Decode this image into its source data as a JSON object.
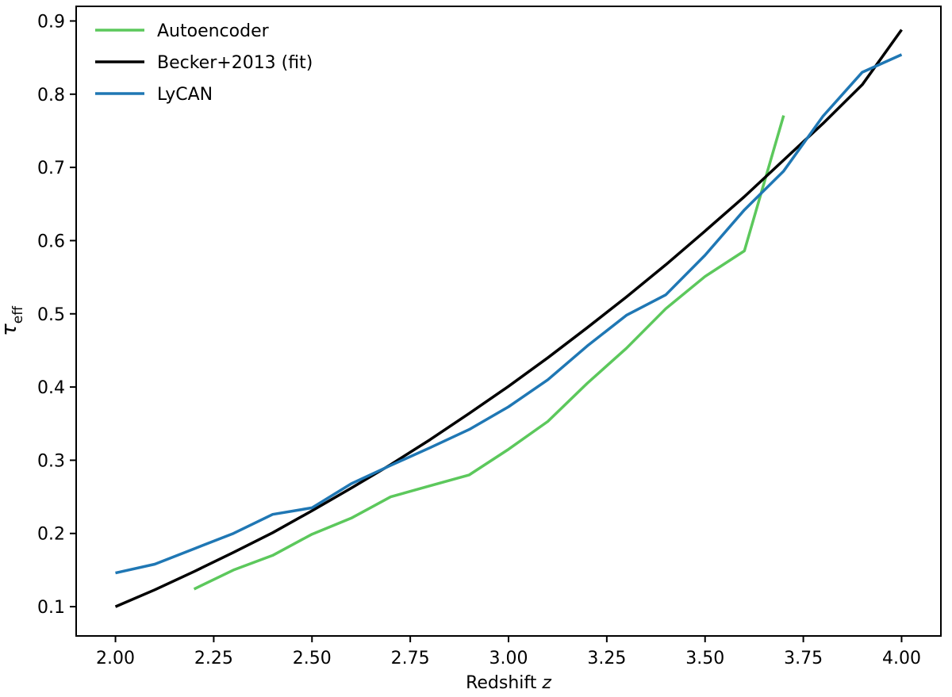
{
  "chart_data": {
    "type": "line",
    "title": "",
    "xlabel": "Redshift",
    "xlabel_var": "z",
    "ylabel": "τ",
    "ylabel_sub": "eff",
    "xlim": [
      1.9,
      4.1
    ],
    "ylim": [
      0.06,
      0.92
    ],
    "xticks": [
      2.0,
      2.25,
      2.5,
      2.75,
      3.0,
      3.25,
      3.5,
      3.75,
      4.0
    ],
    "xtick_labels": [
      "2.00",
      "2.25",
      "2.50",
      "2.75",
      "3.00",
      "3.25",
      "3.50",
      "3.75",
      "4.00"
    ],
    "yticks": [
      0.1,
      0.2,
      0.3,
      0.4,
      0.5,
      0.6,
      0.7,
      0.8,
      0.9
    ],
    "ytick_labels": [
      "0.1",
      "0.2",
      "0.3",
      "0.4",
      "0.5",
      "0.6",
      "0.7",
      "0.8",
      "0.9"
    ],
    "grid": false,
    "legend_position": "top-left",
    "series": [
      {
        "name": "Autoencoder",
        "color": "#5cc85c",
        "x": [
          2.2,
          2.3,
          2.4,
          2.5,
          2.6,
          2.7,
          2.8,
          2.9,
          3.0,
          3.1,
          3.2,
          3.3,
          3.4,
          3.5,
          3.6,
          3.7
        ],
        "y": [
          0.124,
          0.15,
          0.17,
          0.199,
          0.221,
          0.25,
          0.265,
          0.28,
          0.315,
          0.353,
          0.405,
          0.453,
          0.507,
          0.551,
          0.586,
          0.771
        ]
      },
      {
        "name": "Becker+2013 (fit)",
        "color": "#000000",
        "x": [
          2.0,
          2.1,
          2.2,
          2.3,
          2.4,
          2.5,
          2.6,
          2.7,
          2.8,
          2.9,
          3.0,
          3.1,
          3.2,
          3.3,
          3.4,
          3.5,
          3.6,
          3.7,
          3.8,
          3.9,
          4.0
        ],
        "y": [
          0.1,
          0.123,
          0.148,
          0.174,
          0.201,
          0.231,
          0.262,
          0.294,
          0.328,
          0.364,
          0.401,
          0.44,
          0.481,
          0.523,
          0.567,
          0.613,
          0.66,
          0.71,
          0.76,
          0.813,
          0.888
        ]
      },
      {
        "name": "LyCAN",
        "color": "#1f77b4",
        "x": [
          2.0,
          2.1,
          2.2,
          2.3,
          2.4,
          2.5,
          2.6,
          2.7,
          2.8,
          2.9,
          3.0,
          3.1,
          3.2,
          3.3,
          3.4,
          3.5,
          3.6,
          3.7,
          3.8,
          3.9,
          4.0
        ],
        "y": [
          0.146,
          0.158,
          0.179,
          0.2,
          0.226,
          0.235,
          0.268,
          0.293,
          0.317,
          0.342,
          0.373,
          0.41,
          0.456,
          0.498,
          0.526,
          0.58,
          0.642,
          0.695,
          0.77,
          0.83,
          0.854
        ]
      }
    ]
  }
}
